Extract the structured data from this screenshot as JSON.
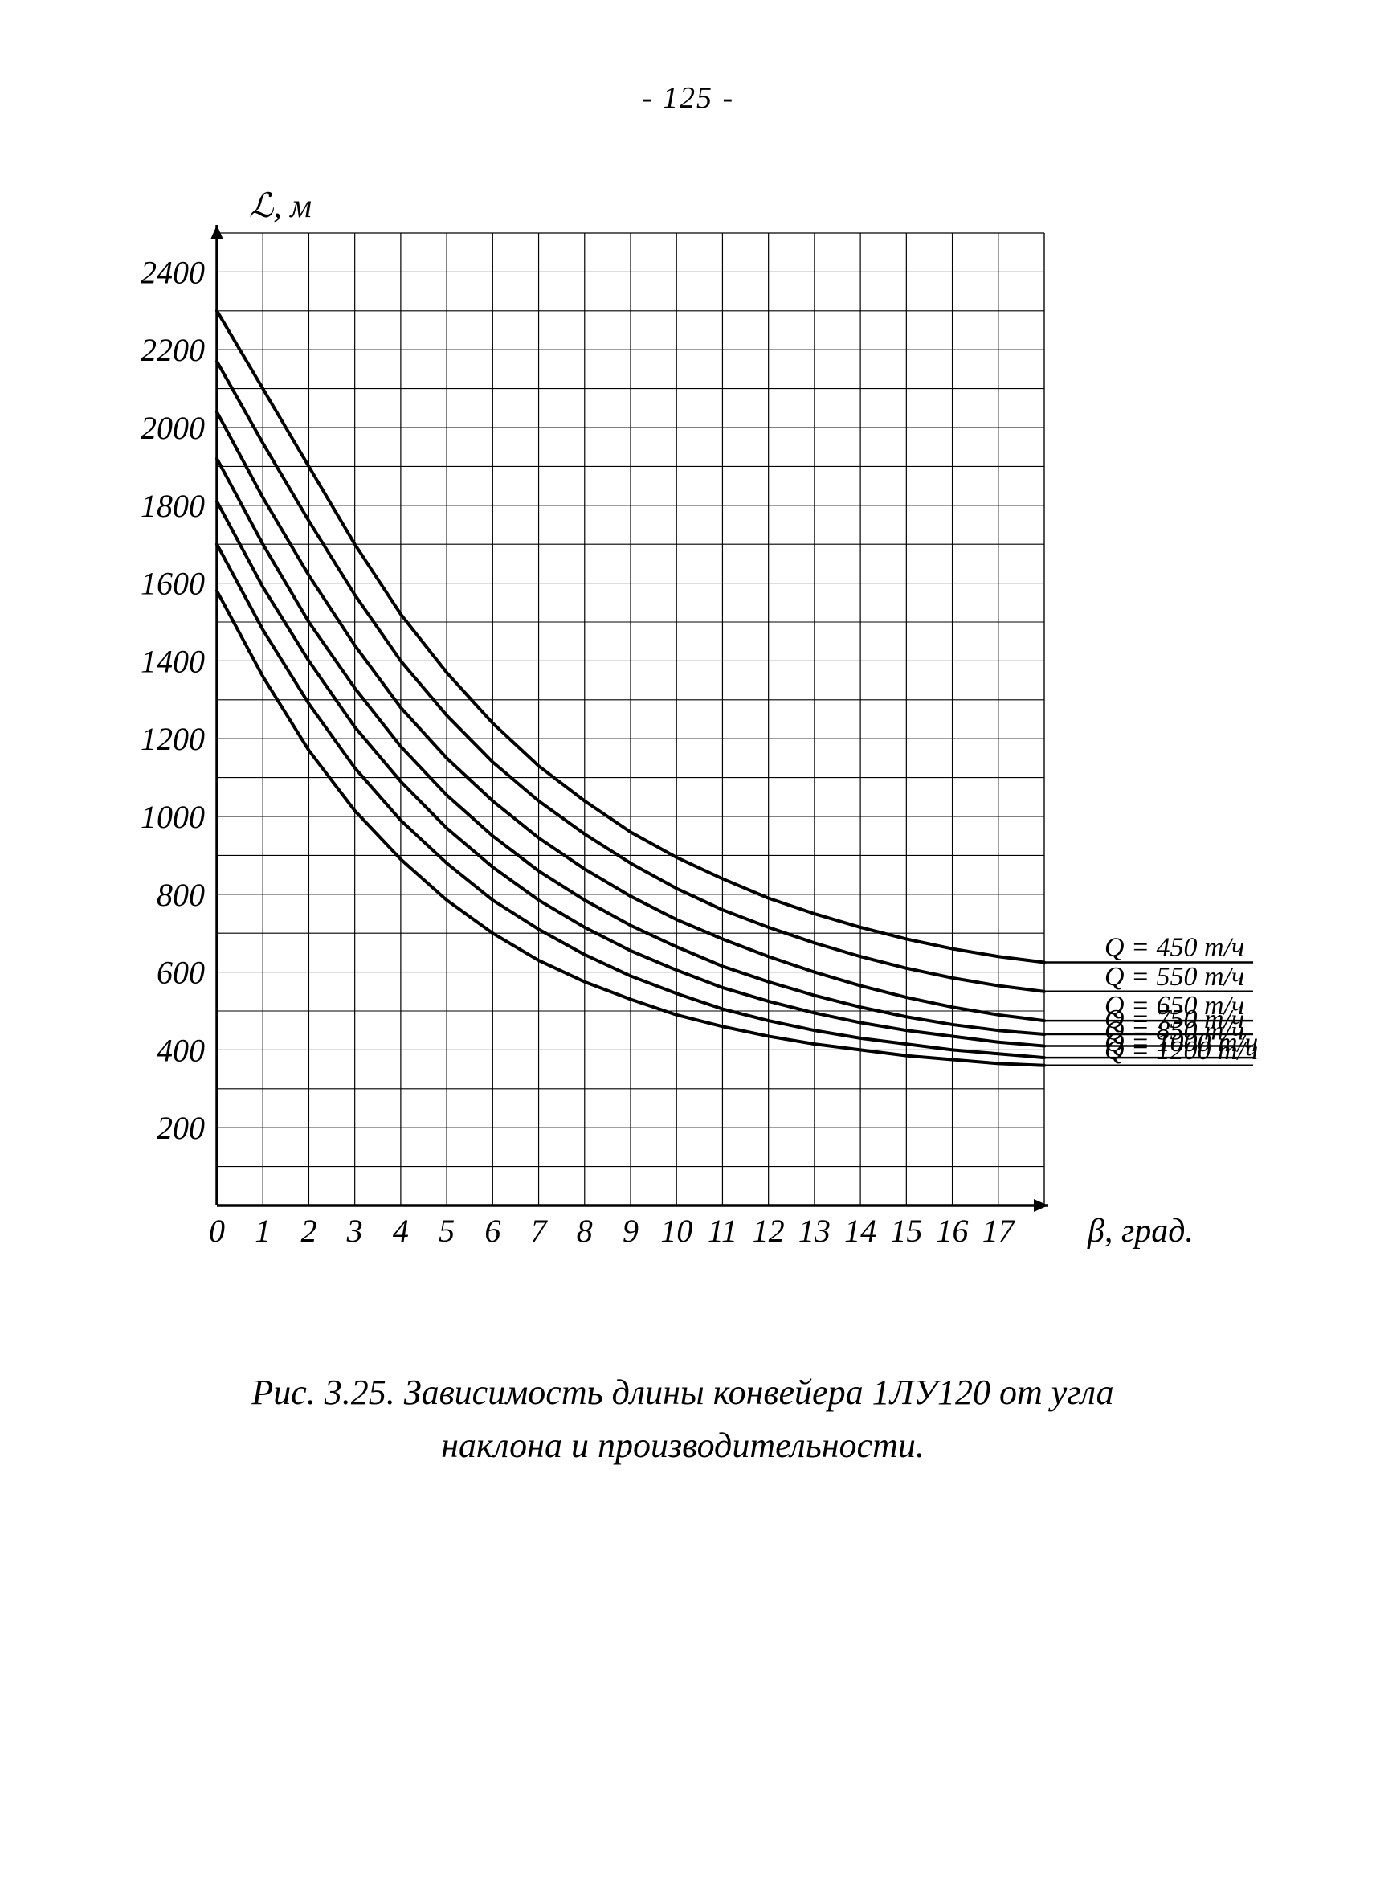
{
  "page_number": "- 125 -",
  "caption_line1": "Рис. 3.25. Зависимость длины конвейера 1ЛУ120 от угла",
  "caption_line2": "наклона и производительности.",
  "chart": {
    "type": "line",
    "background_color": "#ffffff",
    "grid_color": "#000000",
    "line_color": "#000000",
    "line_width_axis": 3.5,
    "line_width_grid": 1.2,
    "line_width_curve": 4,
    "y_axis_title": "ℒ, м",
    "x_axis_title": "β, град.",
    "title_fontsize": 42,
    "tick_fontsize": 40,
    "legend_fontsize": 34,
    "xlim": [
      0,
      18
    ],
    "ylim": [
      0,
      2500
    ],
    "x_ticks": [
      0,
      1,
      2,
      3,
      4,
      5,
      6,
      7,
      8,
      9,
      10,
      11,
      12,
      13,
      14,
      15,
      16,
      17
    ],
    "y_ticks": [
      200,
      400,
      600,
      800,
      1000,
      1200,
      1400,
      1600,
      1800,
      2000,
      2200,
      2400
    ],
    "y_grid_minor_step": 100,
    "series": [
      {
        "label": "Q = 450 т/ч",
        "x": [
          0,
          1,
          2,
          3,
          4,
          5,
          6,
          7,
          8,
          9,
          10,
          11,
          12,
          13,
          14,
          15,
          16,
          17,
          18
        ],
        "y": [
          2300,
          2100,
          1900,
          1700,
          1520,
          1370,
          1240,
          1130,
          1040,
          960,
          895,
          840,
          790,
          750,
          715,
          685,
          660,
          640,
          625
        ]
      },
      {
        "label": "Q = 550 т/ч",
        "x": [
          0,
          1,
          2,
          3,
          4,
          5,
          6,
          7,
          8,
          9,
          10,
          11,
          12,
          13,
          14,
          15,
          16,
          17,
          18
        ],
        "y": [
          2170,
          1960,
          1760,
          1570,
          1400,
          1260,
          1140,
          1040,
          955,
          880,
          815,
          760,
          715,
          675,
          640,
          610,
          585,
          565,
          550
        ]
      },
      {
        "label": "Q = 650 т/ч",
        "x": [
          0,
          1,
          2,
          3,
          4,
          5,
          6,
          7,
          8,
          9,
          10,
          11,
          12,
          13,
          14,
          15,
          16,
          17,
          18
        ],
        "y": [
          2040,
          1820,
          1620,
          1440,
          1280,
          1150,
          1040,
          945,
          865,
          795,
          735,
          685,
          640,
          600,
          565,
          535,
          510,
          490,
          475
        ]
      },
      {
        "label": "Q = 750 т/ч",
        "x": [
          0,
          1,
          2,
          3,
          4,
          5,
          6,
          7,
          8,
          9,
          10,
          11,
          12,
          13,
          14,
          15,
          16,
          17,
          18
        ],
        "y": [
          1920,
          1700,
          1500,
          1330,
          1180,
          1055,
          950,
          860,
          785,
          720,
          665,
          615,
          575,
          540,
          510,
          485,
          465,
          450,
          440
        ]
      },
      {
        "label": "Q = 850 т/ч",
        "x": [
          0,
          1,
          2,
          3,
          4,
          5,
          6,
          7,
          8,
          9,
          10,
          11,
          12,
          13,
          14,
          15,
          16,
          17,
          18
        ],
        "y": [
          1810,
          1590,
          1400,
          1230,
          1090,
          970,
          870,
          785,
          715,
          655,
          605,
          560,
          525,
          495,
          470,
          450,
          435,
          420,
          410
        ]
      },
      {
        "label": "Q = 1000 т/ч",
        "x": [
          0,
          1,
          2,
          3,
          4,
          5,
          6,
          7,
          8,
          9,
          10,
          11,
          12,
          13,
          14,
          15,
          16,
          17,
          18
        ],
        "y": [
          1700,
          1480,
          1290,
          1125,
          990,
          880,
          785,
          710,
          645,
          590,
          545,
          505,
          475,
          450,
          430,
          415,
          400,
          390,
          380
        ]
      },
      {
        "label": "Q = 1200 т/ч",
        "x": [
          0,
          1,
          2,
          3,
          4,
          5,
          6,
          7,
          8,
          9,
          10,
          11,
          12,
          13,
          14,
          15,
          16,
          17,
          18
        ],
        "y": [
          1580,
          1360,
          1170,
          1015,
          890,
          785,
          700,
          630,
          575,
          530,
          490,
          460,
          435,
          415,
          400,
          385,
          375,
          365,
          360
        ]
      }
    ]
  }
}
